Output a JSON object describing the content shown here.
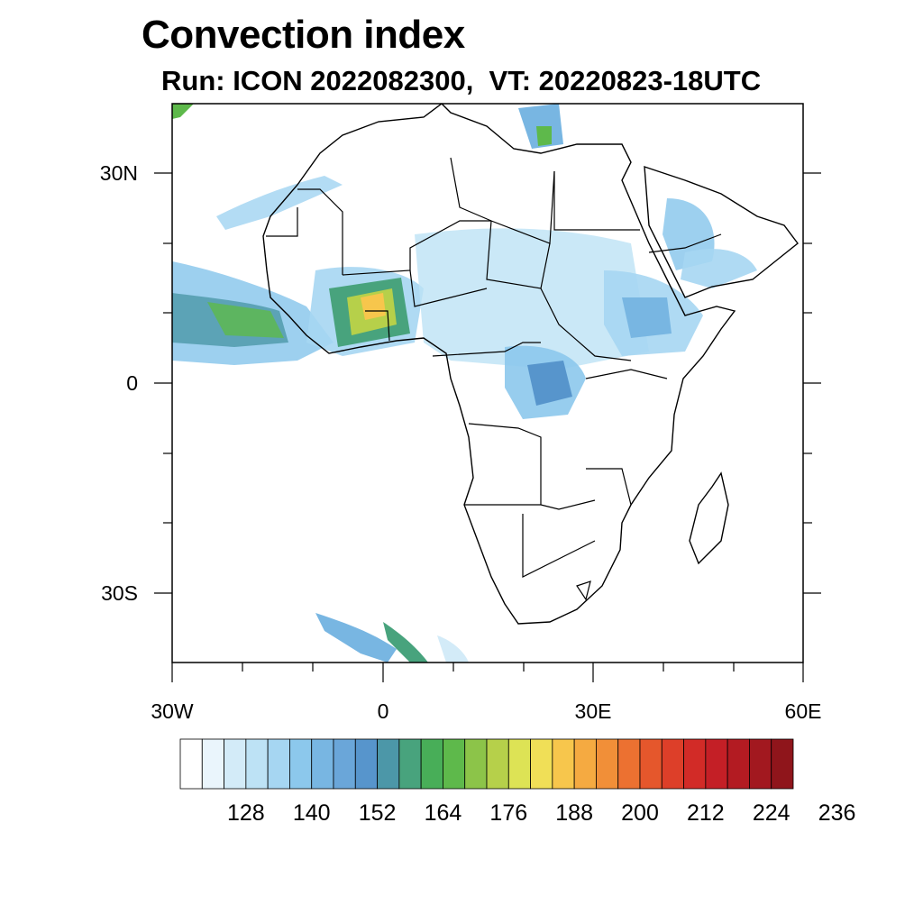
{
  "title": "Convection index",
  "subtitle": "Run: ICON 2022082300,  VT: 20220823-18UTC",
  "axes": {
    "lat_ticks": [
      "30N",
      "0",
      "30S"
    ],
    "lon_ticks": [
      "30W",
      "0",
      "30E",
      "60E"
    ]
  },
  "colorbar": {
    "labels": [
      "128",
      "140",
      "152",
      "164",
      "176",
      "188",
      "200",
      "212",
      "224",
      "236"
    ],
    "colors": [
      "#ffffff",
      "#eaf5fc",
      "#d3ebf8",
      "#bde2f5",
      "#a6d6f2",
      "#8cc8ec",
      "#78b6e2",
      "#6aa6d9",
      "#5795cc",
      "#4c97a8",
      "#48a37d",
      "#48ae58",
      "#5eb94b",
      "#8cc449",
      "#b6d04a",
      "#dde355",
      "#f0df57",
      "#f7c64c",
      "#f5aa41",
      "#f18f38",
      "#ec7131",
      "#e5572c",
      "#dd3f29",
      "#d22b27",
      "#c41f26",
      "#b31b22",
      "#a2181f",
      "#8f151b"
    ]
  }
}
